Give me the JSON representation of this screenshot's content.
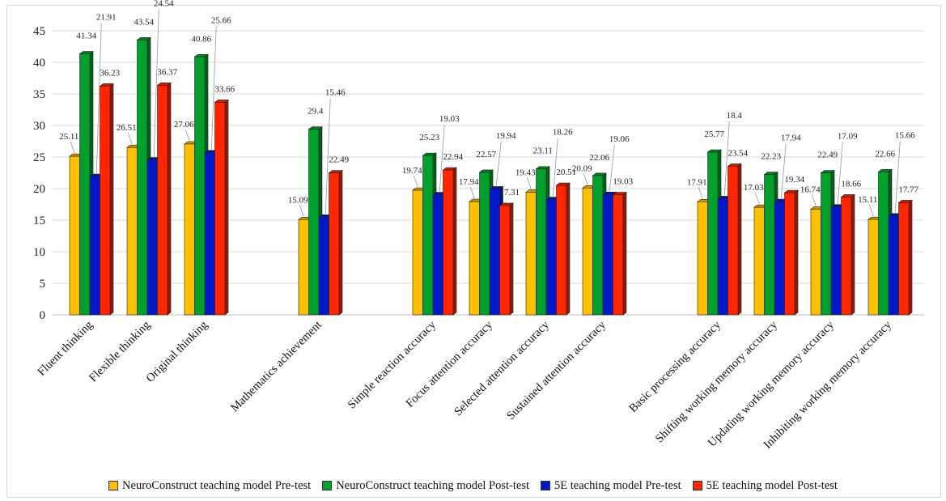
{
  "chart_data": {
    "type": "bar",
    "title": "",
    "xlabel": "",
    "ylabel": "",
    "ylim": [
      0,
      45
    ],
    "yticks": [
      0,
      5,
      10,
      15,
      20,
      25,
      30,
      35,
      40,
      45
    ],
    "grid": true,
    "legend_position": "bottom",
    "categories": [
      "Fluent thinking",
      "Flexible thinking",
      "Original thinking",
      "Mathematics achievement",
      "Simple reaction accuracy",
      "Focus attention accuracy",
      "Selected attention accuracy",
      "Sustained attention accuracy",
      "Basic processing accuracy",
      "Shifting working memory accuracy",
      "Updating working memory accuracy",
      "Inhibiting working memory accuracy"
    ],
    "series": [
      {
        "name": "NeuroConstruct teaching model Pre-test",
        "color": "#FFC000",
        "values": [
          25.11,
          26.51,
          27.06,
          15.09,
          19.74,
          17.94,
          19.43,
          20.09,
          17.91,
          17.03,
          16.74,
          15.11
        ]
      },
      {
        "name": "NeuroConstruct teaching model Post-test",
        "color": "#00A02D",
        "values": [
          41.34,
          43.54,
          40.86,
          29.4,
          25.23,
          22.57,
          23.11,
          22.06,
          25.77,
          22.23,
          22.49,
          22.66
        ]
      },
      {
        "name": "5E teaching model Pre-test",
        "color": "#0019C8",
        "values": [
          21.91,
          24.54,
          25.66,
          15.46,
          19.03,
          19.94,
          18.26,
          19.06,
          18.4,
          17.94,
          17.09,
          15.66
        ]
      },
      {
        "name": "5E teaching model Post-test",
        "color": "#FF2600",
        "values": [
          36.23,
          36.37,
          33.66,
          22.49,
          22.94,
          17.31,
          20.51,
          19.03,
          23.54,
          19.34,
          18.66,
          17.77
        ]
      }
    ]
  }
}
